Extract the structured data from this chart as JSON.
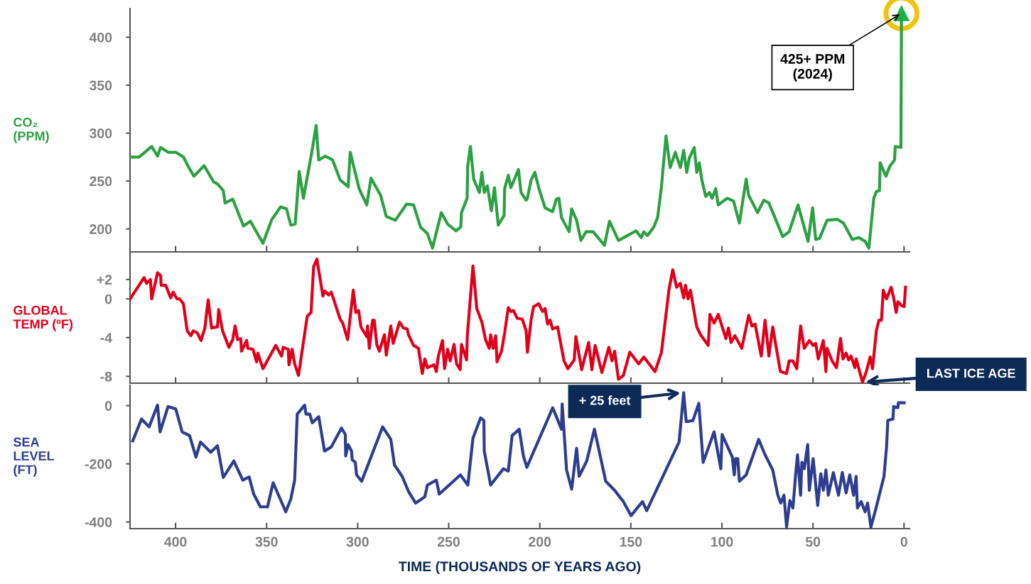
{
  "chart_data": [
    {
      "type": "line",
      "ylabel": "CO₂\n(PPM)",
      "xlim": [
        425,
        -3
      ],
      "xticks": [
        400,
        350,
        300,
        250,
        200,
        150,
        100,
        50,
        0
      ],
      "ylim": [
        176,
        430
      ],
      "yticks": [
        200,
        250,
        300,
        350,
        400
      ],
      "tick_labels": "y",
      "series": [
        {
          "color": "#2ca043",
          "x": [
            424.9,
            420.0,
            413.1,
            409.9,
            408.2,
            404.1,
            399.9,
            395.7,
            393.0,
            389.9,
            384.3,
            379.1,
            377.0,
            373.8,
            372.8,
            368.6,
            362.7,
            358.9,
            352.0,
            347.1,
            342.3,
            339.1,
            336.7,
            334.3,
            332.1,
            329.8,
            325.2,
            322.8,
            321.4,
            317.7,
            313.8,
            309.6,
            305.2,
            304.1,
            299.2,
            295.0,
            292.7,
            287.4,
            284.3,
            279.3,
            273.1,
            269.3,
            265.5,
            261.7,
            258.9,
            254.1,
            250.6,
            246.0,
            243.4,
            243.0,
            239.9,
            239.6,
            238.1,
            236.3,
            233.2,
            231.8,
            230.5,
            228.8,
            226.6,
            224.9,
            222.8,
            219.6,
            219.3,
            217.3,
            215.9,
            211.7,
            210.3,
            207.5,
            206.8,
            204.8,
            202.7,
            200.6,
            197.1,
            193.0,
            190.9,
            189.5,
            188.1,
            183.9,
            182.5,
            179.8,
            177.4,
            174.6,
            170.7,
            164.5,
            161.7,
            156.8,
            147.1,
            144.3,
            142.9,
            140.9,
            137.4,
            135.3,
            133.2,
            130.7,
            128.4,
            125.6,
            122.8,
            121.0,
            119.3,
            117.9,
            115.2,
            113.8,
            112.4,
            111.0,
            108.9,
            106.8,
            105.4,
            103.4,
            102.0,
            97.1,
            93.6,
            90.4,
            86.7,
            85.3,
            80.4,
            77.0,
            74.2,
            66.6,
            63.1,
            58.2,
            52.7,
            50.2,
            48.5,
            46.4,
            42.3,
            36.7,
            33.2,
            28.4,
            24.9,
            21.4,
            19.3,
            16.6,
            15.2,
            13.5,
            13.1,
            9.9,
            7.9,
            5.2,
            4.8,
            1.7,
            1.4
          ],
          "values": [
            275,
            275,
            286,
            276,
            285,
            280,
            280,
            275,
            265,
            255,
            266,
            249,
            247,
            240,
            227,
            231,
            203,
            208,
            185,
            210,
            223,
            221,
            204,
            205,
            260,
            232,
            280,
            308,
            272,
            276,
            272,
            251,
            244,
            280,
            242,
            225,
            253,
            235,
            213,
            209,
            226,
            225,
            202,
            195,
            180,
            217,
            205,
            198,
            202,
            217,
            232,
            265,
            286,
            252,
            238,
            259,
            238,
            245,
            219,
            243,
            204,
            214,
            242,
            256,
            243,
            262,
            238,
            230,
            232,
            251,
            259,
            243,
            222,
            218,
            231,
            232,
            212,
            197,
            221,
            209,
            188,
            197,
            197,
            183,
            208,
            188,
            198,
            191,
            197,
            193,
            202,
            212,
            244,
            297,
            264,
            280,
            264,
            282,
            259,
            274,
            285,
            259,
            269,
            251,
            234,
            238,
            232,
            242,
            225,
            232,
            229,
            206,
            252,
            235,
            217,
            230,
            227,
            192,
            197,
            225,
            187,
            222,
            189,
            190,
            209,
            210,
            206,
            189,
            191,
            187,
            180,
            232,
            239,
            240,
            269,
            255,
            265,
            272,
            286,
            285,
            425
          ]
        }
      ],
      "annotations": [
        {
          "text": "425+ PPM\n(2024)",
          "x": 1.4,
          "y": 425
        }
      ]
    },
    {
      "type": "line",
      "ylabel": "GLOBAL\nTEMP (ºF)",
      "xlim": [
        425,
        -3
      ],
      "xticks": [
        400,
        350,
        300,
        250,
        200,
        150,
        100,
        50,
        0
      ],
      "ylim": [
        -8.7,
        4.7
      ],
      "yticks": [
        {
          "value": 2,
          "label": "+2"
        },
        0,
        -4,
        -8
      ],
      "tick_labels": "y",
      "series": [
        {
          "color": "#e0001b",
          "x": [
            424.9,
            417.3,
            415.9,
            413.8,
            413.1,
            409.9,
            408.2,
            407.9,
            405.4,
            402.7,
            401.3,
            399.2,
            397.8,
            395.7,
            393.6,
            391.6,
            390.2,
            388.1,
            386.0,
            383.9,
            382.1,
            380.2,
            377.0,
            376.3,
            374.2,
            370.7,
            368.6,
            367.3,
            365.9,
            364.2,
            363.8,
            361.0,
            360.3,
            357.5,
            355.5,
            354.8,
            352.0,
            345.0,
            341.8,
            340.9,
            338.1,
            337.7,
            336.0,
            334.6,
            332.5,
            327.7,
            325.6,
            324.2,
            322.4,
            319.1,
            318.0,
            315.9,
            314.5,
            309.6,
            308.2,
            305.5,
            302.4,
            301.0,
            299.5,
            298.2,
            295.0,
            294.6,
            293.6,
            291.8,
            290.9,
            289.5,
            288.1,
            285.3,
            284.3,
            281.8,
            280.5,
            277.0,
            274.9,
            272.8,
            272.1,
            269.3,
            266.6,
            265.9,
            264.5,
            263.1,
            261.7,
            258.2,
            256.8,
            255.7,
            253.4,
            252.3,
            250.6,
            249.2,
            247.1,
            245.7,
            243.7,
            243.0,
            240.2,
            239.8,
            236.7,
            234.6,
            231.8,
            229.8,
            227.7,
            227.0,
            225.6,
            224.2,
            223.5,
            221.0,
            219.3,
            217.3,
            215.9,
            214.5,
            212.4,
            209.6,
            207.5,
            206.8,
            204.8,
            203.4,
            200.6,
            198.5,
            197.1,
            195.7,
            194.3,
            193.0,
            190.2,
            186.7,
            184.6,
            181.1,
            180.2,
            177.0,
            173.2,
            171.4,
            169.6,
            165.9,
            162.1,
            160.3,
            158.9,
            156.8,
            154.1,
            150.6,
            145.7,
            142.9,
            136.7,
            133.2,
            129.1,
            127.0,
            124.9,
            122.8,
            121.0,
            120.0,
            118.6,
            117.3,
            113.8,
            111.7,
            107.5,
            106.6,
            104.3,
            102.0,
            97.8,
            96.4,
            95.0,
            92.9,
            89.1,
            85.3,
            83.5,
            81.8,
            78.4,
            76.3,
            74.2,
            72.1,
            67.9,
            64.5,
            63.1,
            61.0,
            58.9,
            56.8,
            54.8,
            52.0,
            49.9,
            48.5,
            47.1,
            44.3,
            42.9,
            42.3,
            39.5,
            37.1,
            34.9,
            33.5,
            31.8,
            30.4,
            29.1,
            27.0,
            26.3,
            22.8,
            20.7,
            18.6,
            17.3,
            15.2,
            13.8,
            12.4,
            11.4,
            9.6,
            7.1,
            5.7,
            4.3,
            3.4,
            1.3,
            -0.1,
            -0.8
          ],
          "values": [
            0.0,
            2.2,
            1.6,
            2.0,
            0.0,
            2.7,
            2.4,
            1.4,
            1.4,
            0.1,
            0.7,
            0.0,
            0.0,
            -0.5,
            -3.3,
            -3.8,
            -3.3,
            -3.5,
            -4.3,
            -3.0,
            -0.1,
            -3.0,
            -2.9,
            -1.1,
            -3.3,
            -5.0,
            -4.2,
            -2.8,
            -4.2,
            -4.1,
            -5.4,
            -4.3,
            -5.1,
            -5.2,
            -6.5,
            -5.6,
            -7.2,
            -4.8,
            -5.9,
            -5.0,
            -5.2,
            -6.8,
            -5.2,
            -6.7,
            -7.9,
            -1.8,
            -1.4,
            3.3,
            4.1,
            0.3,
            0.8,
            0.4,
            0.7,
            -2.1,
            -2.5,
            -4.2,
            0.9,
            -1.4,
            -1.2,
            -2.9,
            -3.9,
            -2.8,
            -5.1,
            -2.2,
            -2.2,
            -4.7,
            -5.4,
            -3.7,
            -5.8,
            -2.8,
            -4.6,
            -2.4,
            -3.0,
            -3.1,
            -3.7,
            -4.8,
            -5.1,
            -6.0,
            -7.7,
            -6.2,
            -7.1,
            -6.8,
            -7.5,
            -5.9,
            -4.3,
            -7.2,
            -5.2,
            -6.4,
            -4.7,
            -6.7,
            -7.3,
            -4.7,
            -6.3,
            -3.8,
            3.4,
            -1.0,
            -2.4,
            -4.2,
            -5.1,
            -3.7,
            -5.1,
            -3.8,
            -6.5,
            -5.4,
            -3.5,
            -0.9,
            -1.3,
            -1.2,
            -2.0,
            -2.1,
            -3.3,
            -5.5,
            -2.2,
            -0.8,
            -0.5,
            -1.3,
            -1.0,
            -2.6,
            -2.2,
            -3.1,
            -2.9,
            -6.4,
            -7.2,
            -6.3,
            -3.9,
            -7.3,
            -4.5,
            -7.3,
            -4.8,
            -7.6,
            -5.0,
            -6.4,
            -5.4,
            -8.3,
            -7.9,
            -5.5,
            -6.7,
            -6.0,
            -7.5,
            -5.5,
            0.9,
            3.0,
            1.2,
            1.6,
            0.1,
            1.4,
            0.0,
            0.9,
            -2.9,
            -3.7,
            -4.8,
            -1.6,
            -2.5,
            -1.6,
            -4.1,
            -3.0,
            -4.5,
            -3.8,
            -5.1,
            -1.7,
            -2.8,
            -2.6,
            -5.9,
            -2.2,
            -5.9,
            -2.9,
            -7.5,
            -7.7,
            -6.4,
            -6.4,
            -7.2,
            -2.8,
            -5.1,
            -4.3,
            -4.8,
            -4.6,
            -6.2,
            -4.3,
            -7.5,
            -5.1,
            -6.4,
            -7.1,
            -4.1,
            -6.2,
            -5.6,
            -6.3,
            -5.9,
            -7.1,
            -6.2,
            -8.6,
            -7.5,
            -6.0,
            -7.2,
            -3.3,
            -2.2,
            -2.2,
            0.9,
            0.0,
            1.2,
            0.1,
            -1.4,
            -0.3,
            -0.7,
            -0.8,
            1.2
          ]
        }
      ],
      "annotations": [
        {
          "text": "LAST ICE AGE",
          "x": 22.8,
          "y": -8.6
        }
      ]
    },
    {
      "type": "line",
      "ylabel": "SEA\nLEVEL\n(FT)",
      "xlabel": "TIME (THOUSANDS OF YEARS AGO)",
      "xlim": [
        425,
        -3
      ],
      "xticks": [
        400,
        350,
        300,
        250,
        200,
        150,
        100,
        50,
        0
      ],
      "ylim": [
        -423,
        70
      ],
      "yticks": [
        0,
        -200,
        -400
      ],
      "series": [
        {
          "color": "#2e3d8f",
          "x": [
            423.5,
            418.7,
            414.5,
            409.9,
            408.5,
            404.1,
            399.9,
            396.4,
            392.3,
            388.8,
            386.3,
            380.7,
            377.0,
            373.8,
            368.0,
            363.1,
            359.6,
            357.1,
            353.4,
            349.5,
            346.4,
            339.5,
            336.7,
            334.6,
            333.2,
            329.1,
            328.4,
            326.3,
            324.9,
            321.4,
            318.2,
            314.5,
            308.9,
            306.8,
            306.6,
            305.2,
            303.4,
            303.0,
            301.3,
            300.6,
            297.8,
            286.3,
            281.8,
            279.8,
            275.6,
            272.1,
            268.2,
            263.1,
            261.7,
            256.8,
            255.2,
            243.6,
            239.5,
            236.7,
            232.5,
            230.7,
            230.5,
            227.0,
            220.0,
            217.3,
            215.2,
            211.3,
            209.0,
            207.1,
            192.9,
            188.1,
            187.7,
            185.3,
            182.5,
            179.8,
            178.4,
            174.2,
            170.0,
            163.8,
            158.9,
            154.1,
            149.9,
            143.6,
            141.3,
            123.5,
            121.0,
            119.6,
            115.9,
            112.7,
            110.3,
            104.3,
            100.6,
            99.9,
            94.3,
            93.2,
            92.5,
            91.3,
            90.4,
            86.7,
            79.8,
            76.3,
            72.1,
            69.3,
            67.7,
            65.9,
            64.5,
            62.7,
            61.0,
            59.6,
            58.5,
            56.8,
            56.1,
            54.8,
            52.9,
            52.0,
            49.9,
            47.4,
            45.7,
            44.3,
            42.9,
            41.6,
            38.8,
            36.0,
            33.9,
            31.8,
            29.8,
            27.7,
            26.3,
            25.6,
            23.5,
            21.4,
            20.0,
            18.2,
            15.2,
            11.0,
            9.6,
            8.9,
            6.1,
            5.7,
            3.4,
            3.1,
            -0.1
          ],
          "values": [
            -121,
            -46,
            -73,
            2,
            -90,
            -3,
            -11,
            -90,
            -103,
            -177,
            -125,
            -160,
            -138,
            -247,
            -190,
            -256,
            -245,
            -304,
            -348,
            -348,
            -265,
            -365,
            -321,
            -256,
            -29,
            2,
            -29,
            -29,
            -59,
            -38,
            -156,
            -142,
            -77,
            -99,
            -173,
            -134,
            -156,
            -186,
            -195,
            -238,
            -260,
            -73,
            -116,
            -204,
            -243,
            -295,
            -335,
            -313,
            -273,
            -256,
            -304,
            -238,
            -273,
            -112,
            -42,
            -51,
            -156,
            -273,
            -217,
            -225,
            -103,
            -81,
            -173,
            -212,
            -7,
            -81,
            6,
            -221,
            -287,
            -147,
            -243,
            -190,
            -81,
            -260,
            -291,
            -330,
            -378,
            -330,
            -361,
            -125,
            45,
            -55,
            -51,
            8,
            -195,
            -90,
            -217,
            -99,
            -177,
            -238,
            -182,
            -182,
            -260,
            -238,
            -116,
            -169,
            -221,
            -308,
            -335,
            -308,
            -418,
            -326,
            -352,
            -243,
            -169,
            -308,
            -195,
            -217,
            -134,
            -291,
            -182,
            -343,
            -234,
            -291,
            -221,
            -308,
            -230,
            -308,
            -230,
            -300,
            -238,
            -308,
            -243,
            -352,
            -330,
            -365,
            -335,
            -418,
            -348,
            -243,
            -142,
            -51,
            -46,
            -3,
            -7,
            10,
            10
          ]
        }
      ],
      "annotations": [
        {
          "text": "+ 25 feet",
          "x": 121.0,
          "y": 45
        }
      ]
    }
  ]
}
